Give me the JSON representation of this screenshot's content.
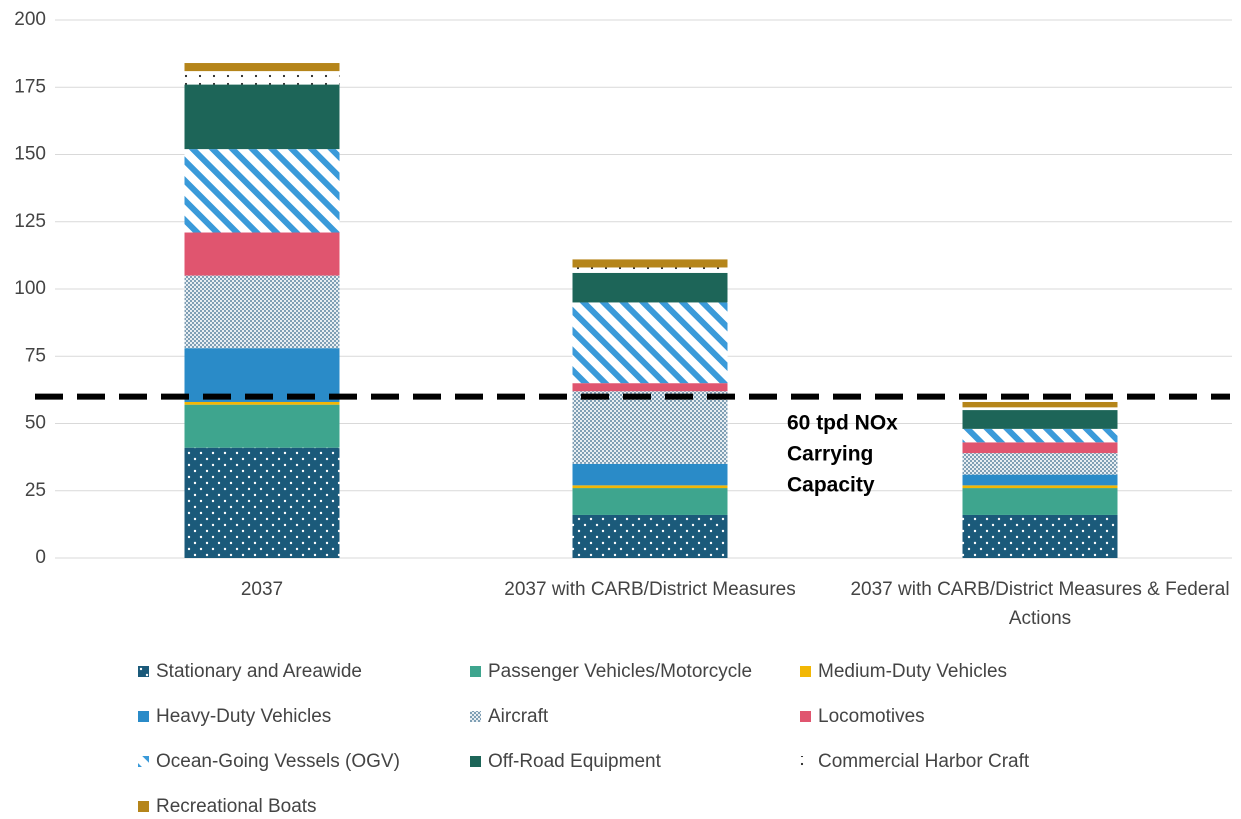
{
  "chart_data": {
    "type": "stacked-bar",
    "categories": [
      "2037",
      "2037 with CARB/District Measures",
      "2037 with CARB/District Measures & Federal Actions"
    ],
    "series": [
      {
        "name": "Stationary and Areawide",
        "color": "#1b5a7a",
        "pattern": "dots",
        "values": [
          41,
          16,
          16
        ]
      },
      {
        "name": "Passenger Vehicles/Motorcycle",
        "color": "#3ea58e",
        "pattern": "solid",
        "values": [
          16,
          10,
          10
        ]
      },
      {
        "name": "Medium-Duty Vehicles",
        "color": "#f2b705",
        "pattern": "solid",
        "values": [
          1,
          1,
          1
        ]
      },
      {
        "name": "Heavy-Duty Vehicles",
        "color": "#2a8bc8",
        "pattern": "solid",
        "values": [
          20,
          8,
          4
        ]
      },
      {
        "name": "Aircraft",
        "color": "#7f9fb5",
        "pattern": "checker",
        "values": [
          27,
          27,
          8
        ]
      },
      {
        "name": "Locomotives",
        "color": "#e0556f",
        "pattern": "solid",
        "values": [
          16,
          3,
          4
        ]
      },
      {
        "name": "Ocean-Going Vessels (OGV)",
        "color": "#3a9ad9",
        "pattern": "diagonal",
        "values": [
          31,
          30,
          5
        ]
      },
      {
        "name": "Off-Road Equipment",
        "color": "#1d6558",
        "pattern": "solid",
        "values": [
          24,
          11,
          7
        ]
      },
      {
        "name": "Commercial Harbor Craft",
        "color": "#222222",
        "pattern": "sparse-dots",
        "values": [
          5,
          2,
          1
        ]
      },
      {
        "name": "Recreational Boats",
        "color": "#b5851a",
        "pattern": "solid",
        "values": [
          3,
          3,
          2
        ]
      }
    ],
    "ylim": [
      0,
      200
    ],
    "yticks": [
      0,
      25,
      50,
      75,
      100,
      125,
      150,
      175,
      200
    ],
    "grid": true,
    "reference_line": {
      "value": 60
    },
    "annotation_lines": [
      "60 tpd NOx",
      "Carrying",
      "Capacity"
    ],
    "legend": "bottom"
  }
}
